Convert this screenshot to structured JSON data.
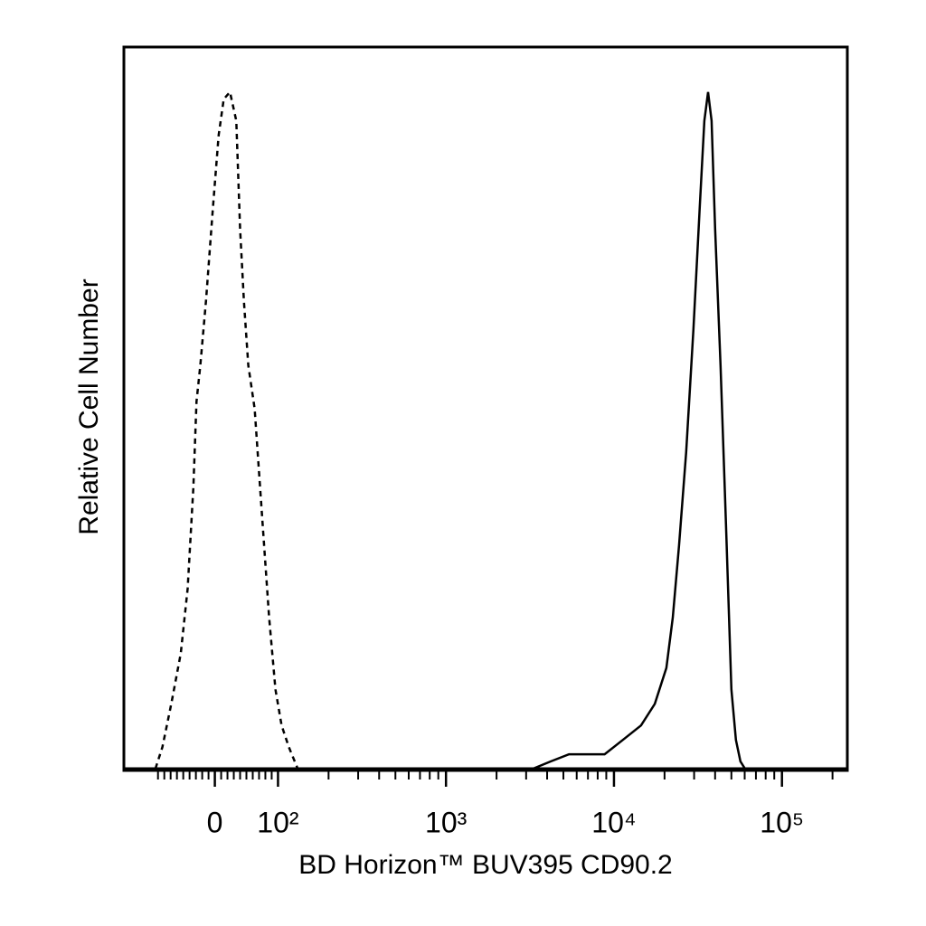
{
  "chart_data": {
    "type": "histogram_overlay",
    "xlabel": "BD Horizon™ BUV395 CD90.2",
    "ylabel": "Relative Cell Number",
    "xscale": "biexponential",
    "xlim": [
      -144,
      245000
    ],
    "ylim": [
      0,
      100
    ],
    "xticks": [
      0,
      {
        "value": 100,
        "label": "10²"
      },
      {
        "value": 1000,
        "label": "10³"
      },
      {
        "value": 10000,
        "label": "10⁴"
      },
      {
        "value": 100000,
        "label": "10⁵"
      }
    ],
    "xminorticks": [
      -90,
      -80,
      -70,
      -60,
      -50,
      -40,
      -30,
      -20,
      -10,
      10,
      20,
      30,
      40,
      50,
      60,
      70,
      80,
      90,
      200,
      300,
      400,
      500,
      600,
      700,
      800,
      900,
      2000,
      3000,
      4000,
      5000,
      6000,
      7000,
      8000,
      9000,
      20000,
      30000,
      40000,
      50000,
      60000,
      70000,
      80000,
      90000,
      200000
    ],
    "series": [
      {
        "color": "#000000",
        "line_style": "dashed",
        "x": [
          -94,
          -83,
          -69,
          -54,
          -43,
          -34,
          -29,
          -23,
          -14,
          -3,
          6,
          14,
          24,
          34,
          40,
          46,
          53,
          63,
          74,
          86,
          96,
          105,
          116,
          131
        ],
        "values": [
          0,
          3,
          9,
          16,
          25,
          39,
          51,
          56,
          65,
          78,
          88,
          93,
          94,
          90,
          75,
          65,
          56,
          50,
          36,
          21,
          11,
          6,
          3,
          0
        ]
      },
      {
        "color": "#000000",
        "line_style": "solid",
        "x": [
          3300,
          4200,
          5400,
          6900,
          8800,
          11300,
          14500,
          17500,
          20500,
          22400,
          24400,
          26900,
          29700,
          32400,
          34500,
          36300,
          38100,
          40000,
          43100,
          46400,
          50000,
          53200,
          56600,
          60200
        ],
        "values": [
          0,
          1,
          2,
          2,
          2,
          4,
          6,
          9,
          14,
          21,
          31,
          44,
          61,
          78,
          90,
          94,
          90,
          75,
          56,
          34,
          11,
          4,
          1,
          0
        ]
      }
    ]
  }
}
